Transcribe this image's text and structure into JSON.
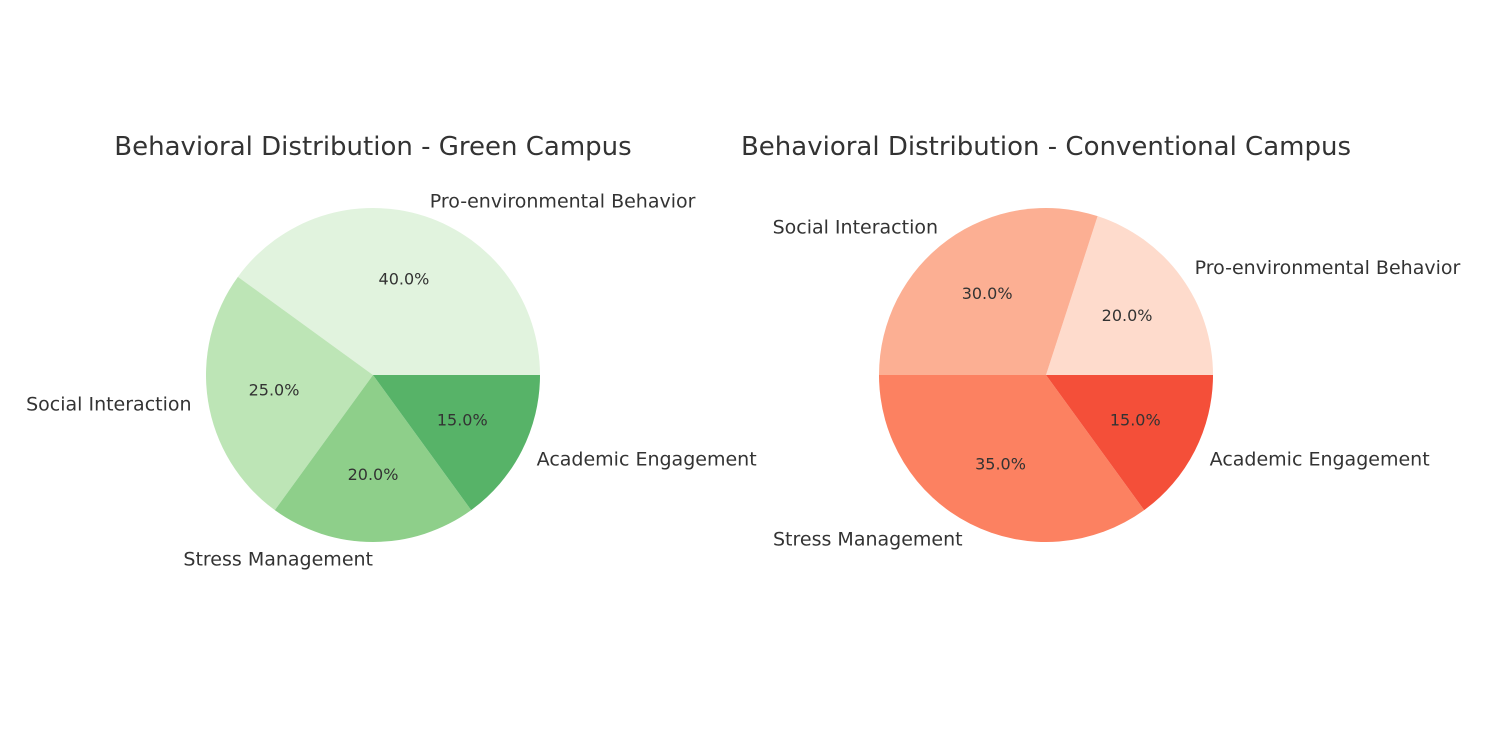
{
  "chart_data": [
    {
      "type": "pie",
      "title": "Behavioral Distribution - Green Campus",
      "slices": [
        {
          "label": "Pro-environmental Behavior",
          "value": 40,
          "pct_label": "40.0%",
          "color": "#e1f3de"
        },
        {
          "label": "Social Interaction",
          "value": 25,
          "pct_label": "25.0%",
          "color": "#bde5b6"
        },
        {
          "label": "Stress Management",
          "value": 20,
          "pct_label": "20.0%",
          "color": "#8ecf8a"
        },
        {
          "label": "Academic Engagement",
          "value": 15,
          "pct_label": "15.0%",
          "color": "#57b368"
        }
      ],
      "start_angle_deg": 0,
      "direction": "counterclockwise"
    },
    {
      "type": "pie",
      "title": "Behavioral Distribution - Conventional Campus",
      "slices": [
        {
          "label": "Pro-environmental Behavior",
          "value": 20,
          "pct_label": "20.0%",
          "color": "#fedbcc"
        },
        {
          "label": "Social Interaction",
          "value": 30,
          "pct_label": "30.0%",
          "color": "#fcaf93"
        },
        {
          "label": "Stress Management",
          "value": 35,
          "pct_label": "35.0%",
          "color": "#fc8161"
        },
        {
          "label": "Academic Engagement",
          "value": 15,
          "pct_label": "15.0%",
          "color": "#f44f39"
        }
      ],
      "start_angle_deg": 0,
      "direction": "counterclockwise"
    }
  ]
}
